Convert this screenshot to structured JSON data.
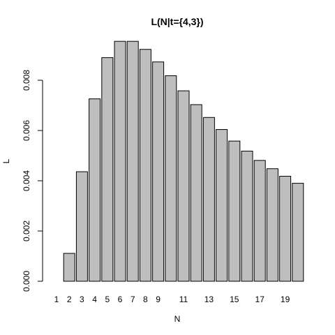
{
  "chart_data": {
    "type": "bar",
    "title": "L(N|t={4,3})",
    "xlabel": "N",
    "ylabel": "L",
    "categories": [
      "1",
      "2",
      "3",
      "4",
      "5",
      "6",
      "7",
      "8",
      "9",
      "10",
      "11",
      "12",
      "13",
      "14",
      "15",
      "16",
      "17",
      "18",
      "19",
      "20"
    ],
    "x_tick_labels_shown": [
      "1",
      "2",
      "3",
      "4",
      "5",
      "6",
      "7",
      "8",
      "9",
      "11",
      "13",
      "15",
      "17",
      "19"
    ],
    "values": [
      0.0,
      0.00111,
      0.00436,
      0.00726,
      0.0089,
      0.00955,
      0.00955,
      0.00923,
      0.00873,
      0.00818,
      0.00758,
      0.00703,
      0.00652,
      0.00604,
      0.00558,
      0.00518,
      0.00481,
      0.00448,
      0.00418,
      0.0039
    ],
    "ylim": [
      0,
      0.0096
    ],
    "y_ticks": [
      "0.000",
      "0.002",
      "0.004",
      "0.006",
      "0.008"
    ],
    "y_tick_values": [
      0.0,
      0.002,
      0.004,
      0.006,
      0.008
    ],
    "grid": false,
    "legend": "none",
    "colors": {
      "bar_fill": "#bebebe",
      "bar_stroke": "#000000"
    }
  }
}
